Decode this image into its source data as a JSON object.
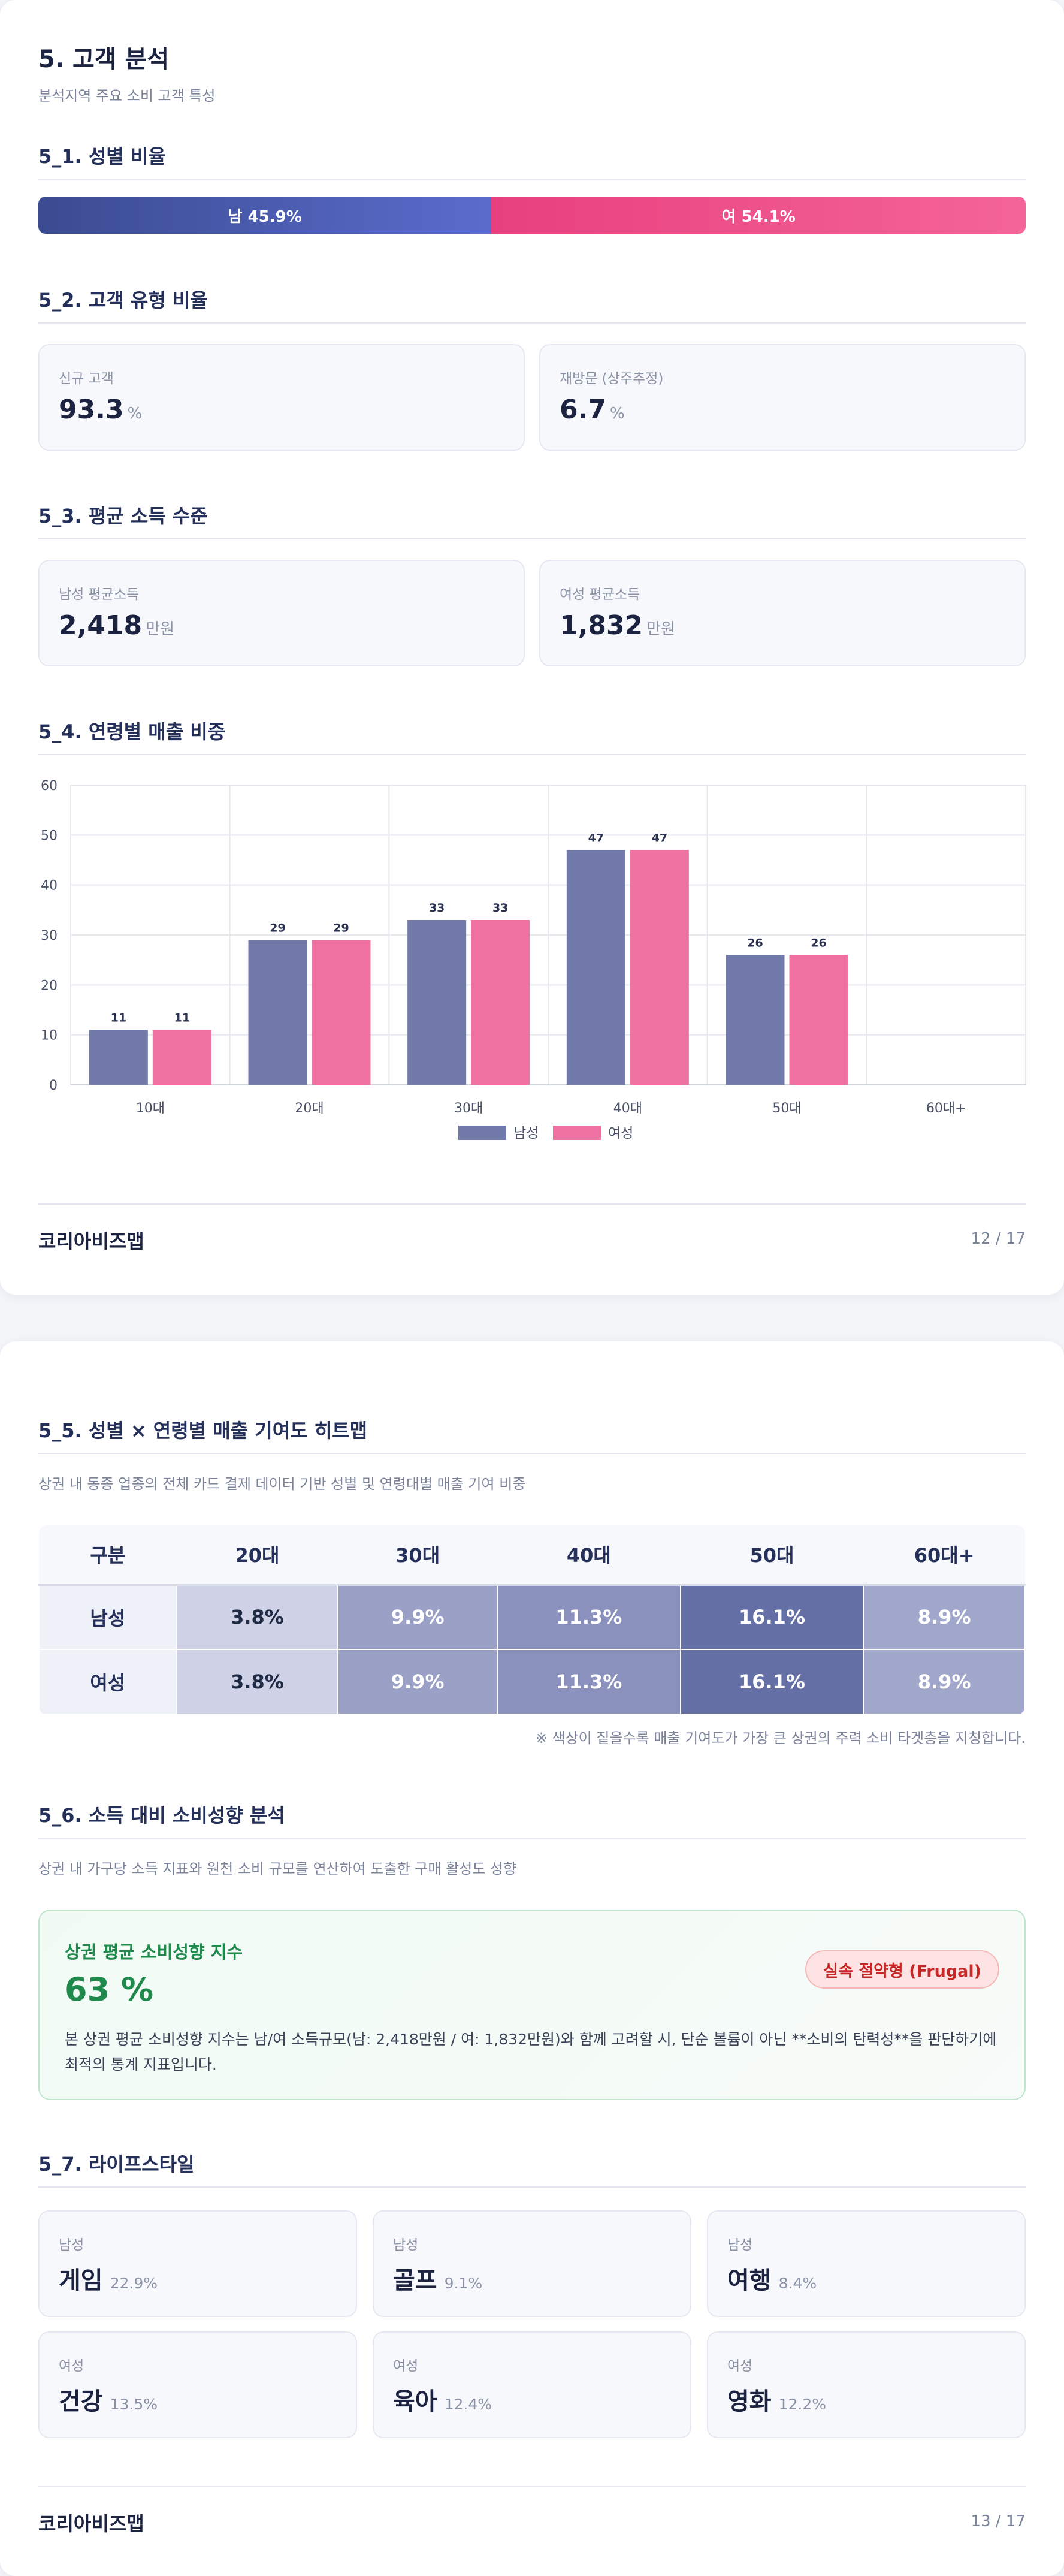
{
  "page1": {
    "title": "5. 고객 분석",
    "subtitle": "분석지역 주요 소비 고객 특성",
    "gender": {
      "title": "5_1. 성별 비율",
      "male_label": "남 45.9%",
      "female_label": "여 54.1%",
      "male_pct": 45.9,
      "female_pct": 54.1
    },
    "customer_type": {
      "title": "5_2. 고객 유형 비율",
      "cards": [
        {
          "label": "신규 고객",
          "value": "93.3",
          "unit": "%"
        },
        {
          "label": "재방문 (상주추정)",
          "value": "6.7",
          "unit": "%"
        }
      ]
    },
    "income": {
      "title": "5_3. 평균 소득 수준",
      "cards": [
        {
          "label": "남성 평균소득",
          "value": "2,418",
          "unit": "만원"
        },
        {
          "label": "여성 평균소득",
          "value": "1,832",
          "unit": "만원"
        }
      ]
    },
    "age_sales": {
      "title": "5_4. 연령별 매출 비중"
    },
    "footer": {
      "brand": "코리아비즈맵",
      "page": "12 / 17"
    }
  },
  "chart_data": {
    "type": "bar",
    "categories": [
      "10대",
      "20대",
      "30대",
      "40대",
      "50대",
      "60대+"
    ],
    "series": [
      {
        "name": "남성",
        "values": [
          11,
          29,
          33,
          47,
          26,
          0
        ]
      },
      {
        "name": "여성",
        "values": [
          11,
          29,
          33,
          47,
          26,
          0
        ]
      }
    ],
    "data_labels": [
      [
        "11",
        "29",
        "33",
        "47",
        "26",
        ""
      ],
      [
        "11",
        "29",
        "33",
        "47",
        "26",
        ""
      ]
    ],
    "ylim": [
      0,
      60
    ],
    "yticks": [
      0,
      10,
      20,
      30,
      40,
      50,
      60
    ],
    "grid": true,
    "legend": "bottom-center",
    "colors": [
      "#7079a8",
      "#ef72a3"
    ]
  },
  "page2": {
    "heatmap": {
      "title": "5_5. 성별 × 연령별 매출 기여도 히트맵",
      "subtitle": "상권 내 동종 업종의 전체 카드 결제 데이터 기반 성별 및 연령대별 매출 기여 비중",
      "headers": [
        "구분",
        "20대",
        "30대",
        "40대",
        "50대",
        "60대+"
      ],
      "rows": [
        {
          "label": "남성",
          "cells": [
            {
              "text": "3.8%",
              "bg": "#cfd2e6",
              "fg": "#1f2a44"
            },
            {
              "text": "9.9%",
              "bg": "#9aa0c6",
              "fg": "#ffffff"
            },
            {
              "text": "11.3%",
              "bg": "#8a91bd",
              "fg": "#ffffff"
            },
            {
              "text": "16.1%",
              "bg": "#646fa6",
              "fg": "#ffffff"
            },
            {
              "text": "8.9%",
              "bg": "#a1a7ca",
              "fg": "#ffffff"
            }
          ]
        },
        {
          "label": "여성",
          "cells": [
            {
              "text": "3.8%",
              "bg": "#cfd2e6",
              "fg": "#1f2a44"
            },
            {
              "text": "9.9%",
              "bg": "#9aa0c6",
              "fg": "#ffffff"
            },
            {
              "text": "11.3%",
              "bg": "#8a91bd",
              "fg": "#ffffff"
            },
            {
              "text": "16.1%",
              "bg": "#646fa6",
              "fg": "#ffffff"
            },
            {
              "text": "8.9%",
              "bg": "#a1a7ca",
              "fg": "#ffffff"
            }
          ]
        }
      ],
      "note": "※ 색상이 짙을수록 매출 기여도가 가장 큰 상권의 주력 소비 타겟층을 지칭합니다."
    },
    "spending": {
      "title": "5_6. 소득 대비 소비성향 분석",
      "subtitle": "상권 내 가구당 소득 지표와 원천 소비 규모를 연산하여 도출한 구매 활성도 성향",
      "box_title": "상권 평균 소비성향 지수",
      "value": "63 %",
      "badge": "실속 절약형 (Frugal)",
      "description": "본 상권 평균 소비성향 지수는 남/여 소득규모(남: 2,418만원 / 여: 1,832만원)와 함께 고려할 시, 단순 볼륨이 아닌 **소비의 탄력성**을 판단하기에 최적의 통계 지표입니다."
    },
    "lifestyle": {
      "title": "5_7. 라이프스타일",
      "items": [
        {
          "gender": "남성",
          "name": "게임",
          "pct": "22.9%"
        },
        {
          "gender": "남성",
          "name": "골프",
          "pct": "9.1%"
        },
        {
          "gender": "남성",
          "name": "여행",
          "pct": "8.4%"
        },
        {
          "gender": "여성",
          "name": "건강",
          "pct": "13.5%"
        },
        {
          "gender": "여성",
          "name": "육아",
          "pct": "12.4%"
        },
        {
          "gender": "여성",
          "name": "영화",
          "pct": "12.2%"
        }
      ]
    },
    "footer": {
      "brand": "코리아비즈맵",
      "page": "13 / 17"
    }
  }
}
